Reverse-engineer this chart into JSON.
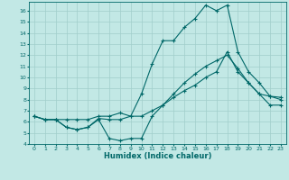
{
  "xlabel": "Humidex (Indice chaleur)",
  "background_color": "#c2e8e5",
  "grid_color": "#a0ceca",
  "line_color": "#006868",
  "xlim": [
    -0.5,
    23.5
  ],
  "ylim": [
    4,
    16.8
  ],
  "yticks": [
    4,
    5,
    6,
    7,
    8,
    9,
    10,
    11,
    12,
    13,
    14,
    15,
    16
  ],
  "xticks": [
    0,
    1,
    2,
    3,
    4,
    5,
    6,
    7,
    8,
    9,
    10,
    11,
    12,
    13,
    14,
    15,
    16,
    17,
    18,
    19,
    20,
    21,
    22,
    23
  ],
  "line1_x": [
    0,
    1,
    2,
    3,
    4,
    5,
    6,
    7,
    8,
    9,
    10,
    11,
    12,
    13,
    14,
    15,
    16,
    17,
    18,
    19,
    20,
    21,
    22,
    23
  ],
  "line1_y": [
    6.5,
    6.2,
    6.2,
    6.2,
    6.2,
    6.2,
    6.5,
    6.5,
    6.8,
    6.5,
    8.5,
    11.2,
    13.3,
    13.3,
    14.5,
    15.3,
    16.5,
    16.0,
    16.5,
    12.3,
    10.5,
    9.5,
    8.3,
    8.0
  ],
  "line2_x": [
    0,
    1,
    2,
    3,
    4,
    5,
    6,
    7,
    8,
    9,
    10,
    11,
    12,
    13,
    14,
    15,
    16,
    17,
    18,
    19,
    20,
    21,
    22,
    23
  ],
  "line2_y": [
    6.5,
    6.2,
    6.2,
    5.5,
    5.3,
    5.5,
    6.3,
    6.2,
    6.2,
    6.5,
    6.5,
    7.0,
    7.5,
    8.2,
    8.8,
    9.3,
    10.0,
    10.5,
    12.3,
    10.5,
    9.5,
    8.5,
    8.3,
    8.2
  ],
  "line3_x": [
    0,
    1,
    2,
    3,
    4,
    5,
    6,
    7,
    8,
    9,
    10,
    11,
    12,
    13,
    14,
    15,
    16,
    17,
    18,
    19,
    20,
    21,
    22,
    23
  ],
  "line3_y": [
    6.5,
    6.2,
    6.2,
    5.5,
    5.3,
    5.5,
    6.2,
    4.5,
    4.3,
    4.5,
    4.5,
    6.5,
    7.5,
    8.5,
    9.5,
    10.3,
    11.0,
    11.5,
    12.0,
    10.8,
    9.5,
    8.5,
    7.5,
    7.5
  ]
}
